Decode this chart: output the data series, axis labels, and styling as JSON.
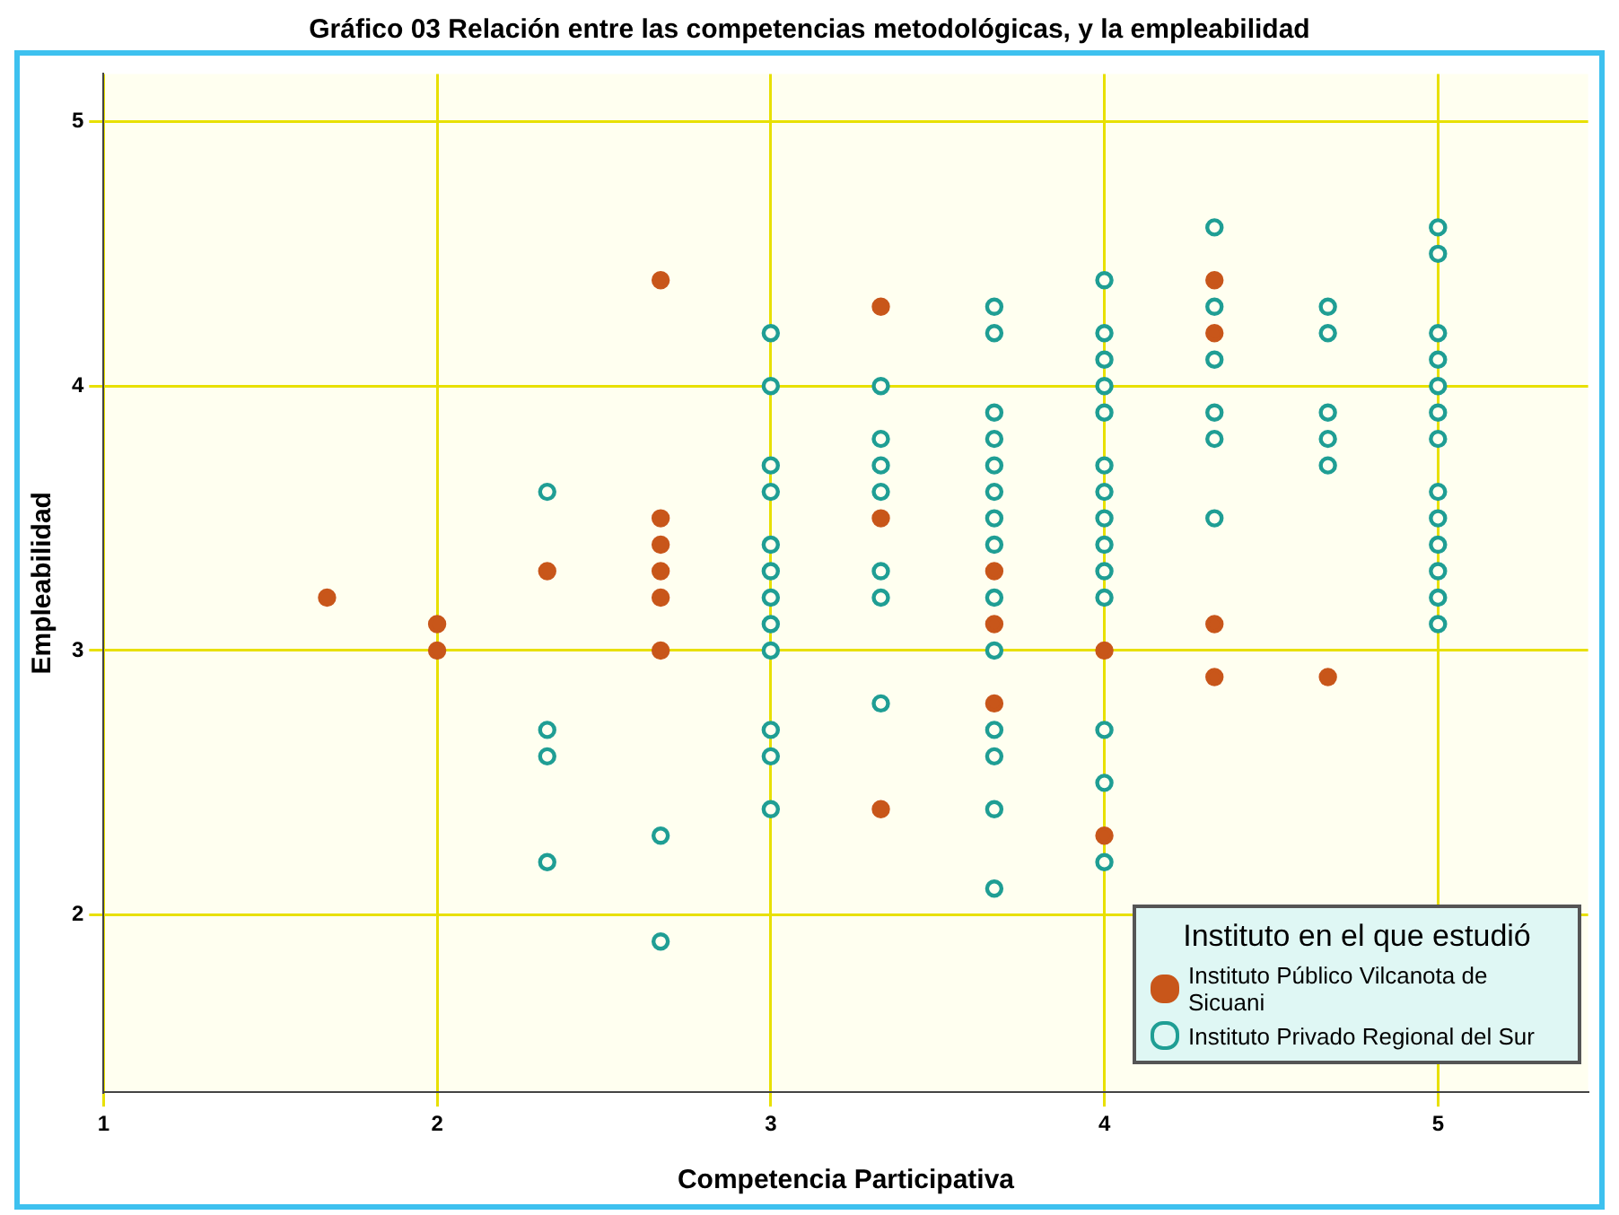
{
  "chart_data": {
    "type": "scatter",
    "title": "Gráfico 03 Relación entre las competencias metodológicas, y la empleabilidad",
    "xlabel": "Competencia Participativa",
    "ylabel": "Empleabilidad",
    "legend_title": "Instituto en el que estudió",
    "xlim": [
      1,
      5.45
    ],
    "ylim": [
      1.33,
      5.18
    ],
    "xticks": [
      1,
      2,
      3,
      4,
      5
    ],
    "yticks": [
      2,
      3,
      4,
      5
    ],
    "grid": true,
    "legend": "bottom right",
    "marker": "circle",
    "series": [
      {
        "name": "Instituto Público Vilcanota de Sicuani",
        "color": "#c8561a",
        "x": [
          1.67,
          2,
          2,
          2.33,
          2.67,
          2.67,
          2.67,
          2.67,
          2.67,
          2.67,
          3.33,
          3.33,
          3.33,
          3.67,
          3.67,
          3.67,
          4,
          4,
          4.33,
          4.33,
          4.33,
          4.33,
          4.67
        ],
        "values": [
          3.2,
          3.1,
          3.0,
          3.3,
          4.4,
          3.5,
          3.4,
          3.3,
          3.2,
          3.0,
          4.3,
          3.5,
          2.4,
          3.3,
          3.1,
          2.8,
          3.0,
          2.3,
          4.4,
          4.2,
          3.1,
          2.9,
          2.9
        ]
      },
      {
        "name": "Instituto Privado Regional del Sur",
        "color": "#1f9e94",
        "x": [
          2.33,
          2.33,
          2.33,
          2.33,
          2.67,
          2.67,
          3,
          3,
          3,
          3,
          3,
          3,
          3,
          3,
          3,
          3,
          3,
          3,
          3.33,
          3.33,
          3.33,
          3.33,
          3.33,
          3.33,
          3.33,
          3.67,
          3.67,
          3.67,
          3.67,
          3.67,
          3.67,
          3.67,
          3.67,
          3.67,
          3.67,
          3.67,
          3.67,
          3.67,
          3.67,
          4,
          4,
          4,
          4,
          4,
          4,
          4,
          4,
          4,
          4,
          4,
          4,
          4,
          4,
          4.33,
          4.33,
          4.33,
          4.33,
          4.33,
          4.33,
          4.67,
          4.67,
          4.67,
          4.67,
          4.67,
          5,
          5,
          5,
          5,
          5,
          5,
          5,
          5,
          5,
          5,
          5,
          5,
          5
        ],
        "values": [
          3.6,
          2.7,
          2.6,
          2.2,
          2.3,
          1.9,
          4.2,
          4.0,
          3.7,
          3.6,
          3.4,
          3.3,
          3.2,
          3.1,
          3.0,
          2.7,
          2.6,
          2.4,
          4.0,
          3.8,
          3.7,
          3.6,
          3.3,
          3.2,
          2.8,
          4.3,
          4.2,
          3.9,
          3.8,
          3.7,
          3.6,
          3.5,
          3.4,
          3.2,
          3.0,
          2.7,
          2.6,
          2.4,
          2.1,
          4.4,
          4.2,
          4.1,
          4.0,
          3.9,
          3.7,
          3.6,
          3.5,
          3.4,
          3.3,
          3.2,
          2.7,
          2.5,
          2.2,
          4.6,
          4.3,
          4.1,
          3.9,
          3.8,
          3.5,
          4.3,
          4.2,
          3.9,
          3.8,
          3.7,
          4.6,
          4.5,
          4.2,
          4.1,
          4.0,
          3.9,
          3.8,
          3.6,
          3.5,
          3.4,
          3.3,
          3.2,
          3.1
        ]
      }
    ]
  }
}
